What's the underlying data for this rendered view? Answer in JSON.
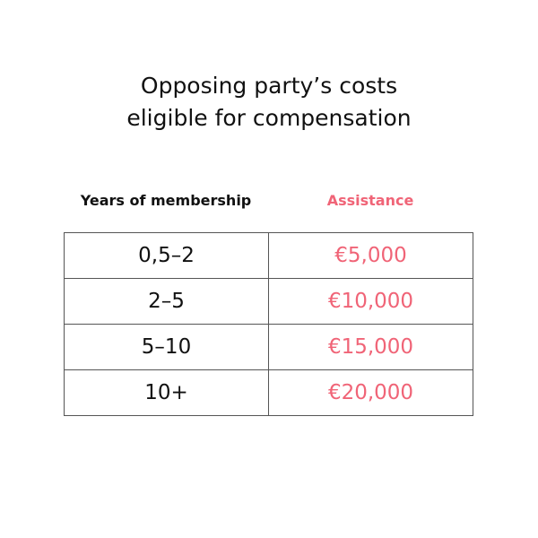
{
  "title": {
    "lines": [
      "Opposing party’s costs",
      "eligible for compensation"
    ]
  },
  "table": {
    "headers": [
      "Years of membership",
      "Assistance"
    ],
    "rows": [
      [
        "0,5–2",
        "€5,000"
      ],
      [
        "2–5",
        "€10,000"
      ],
      [
        "5–10",
        "€15,000"
      ],
      [
        "10+",
        "€20,000"
      ]
    ]
  }
}
